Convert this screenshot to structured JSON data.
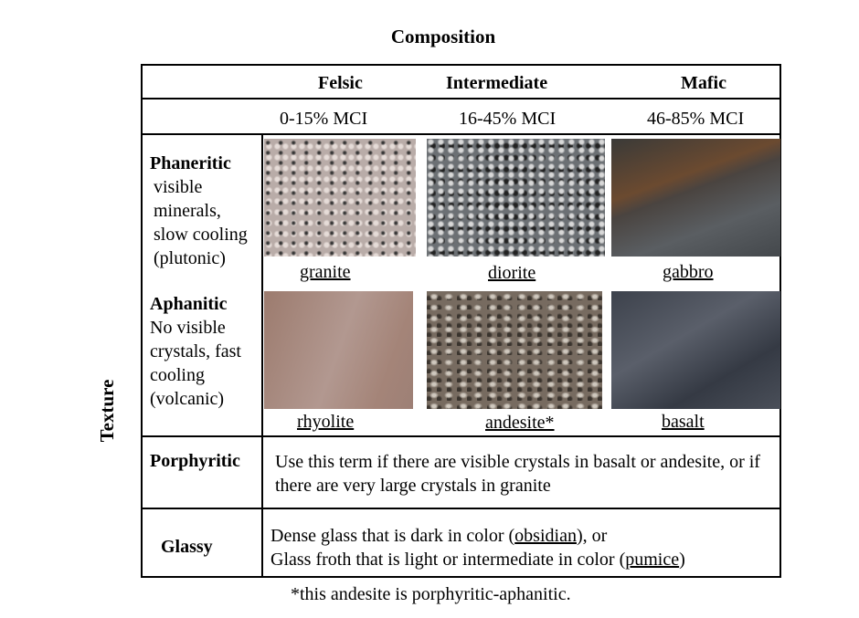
{
  "title": "Composition",
  "side_label": "Texture",
  "columns": [
    {
      "name": "Felsic",
      "range": "0-15% MCI"
    },
    {
      "name": "Intermediate",
      "range": "16-45% MCI"
    },
    {
      "name": "Mafic",
      "range": "46-85% MCI"
    }
  ],
  "rows": [
    {
      "name": "Phaneritic",
      "description": "visible minerals, slow cooling (plutonic)",
      "rocks": [
        "granite",
        "diorite",
        "gabbro"
      ]
    },
    {
      "name": "Aphanitic",
      "description": "No visible crystals, fast cooling (volcanic)",
      "rocks": [
        "rhyolite",
        "andesite*",
        "basalt"
      ]
    }
  ],
  "porphyritic": {
    "name": "Porphyritic",
    "text": "Use this term if there are visible crystals in basalt or andesite, or if there are very large crystals in granite"
  },
  "glassy": {
    "name": "Glassy",
    "line1": [
      "Dense glass that is dark in color (",
      "obsidian",
      "), or"
    ],
    "line2": [
      "Glass froth that is light or intermediate in color (",
      "pumice",
      ")"
    ]
  },
  "footnote": "*this andesite is porphyritic-aphanitic."
}
